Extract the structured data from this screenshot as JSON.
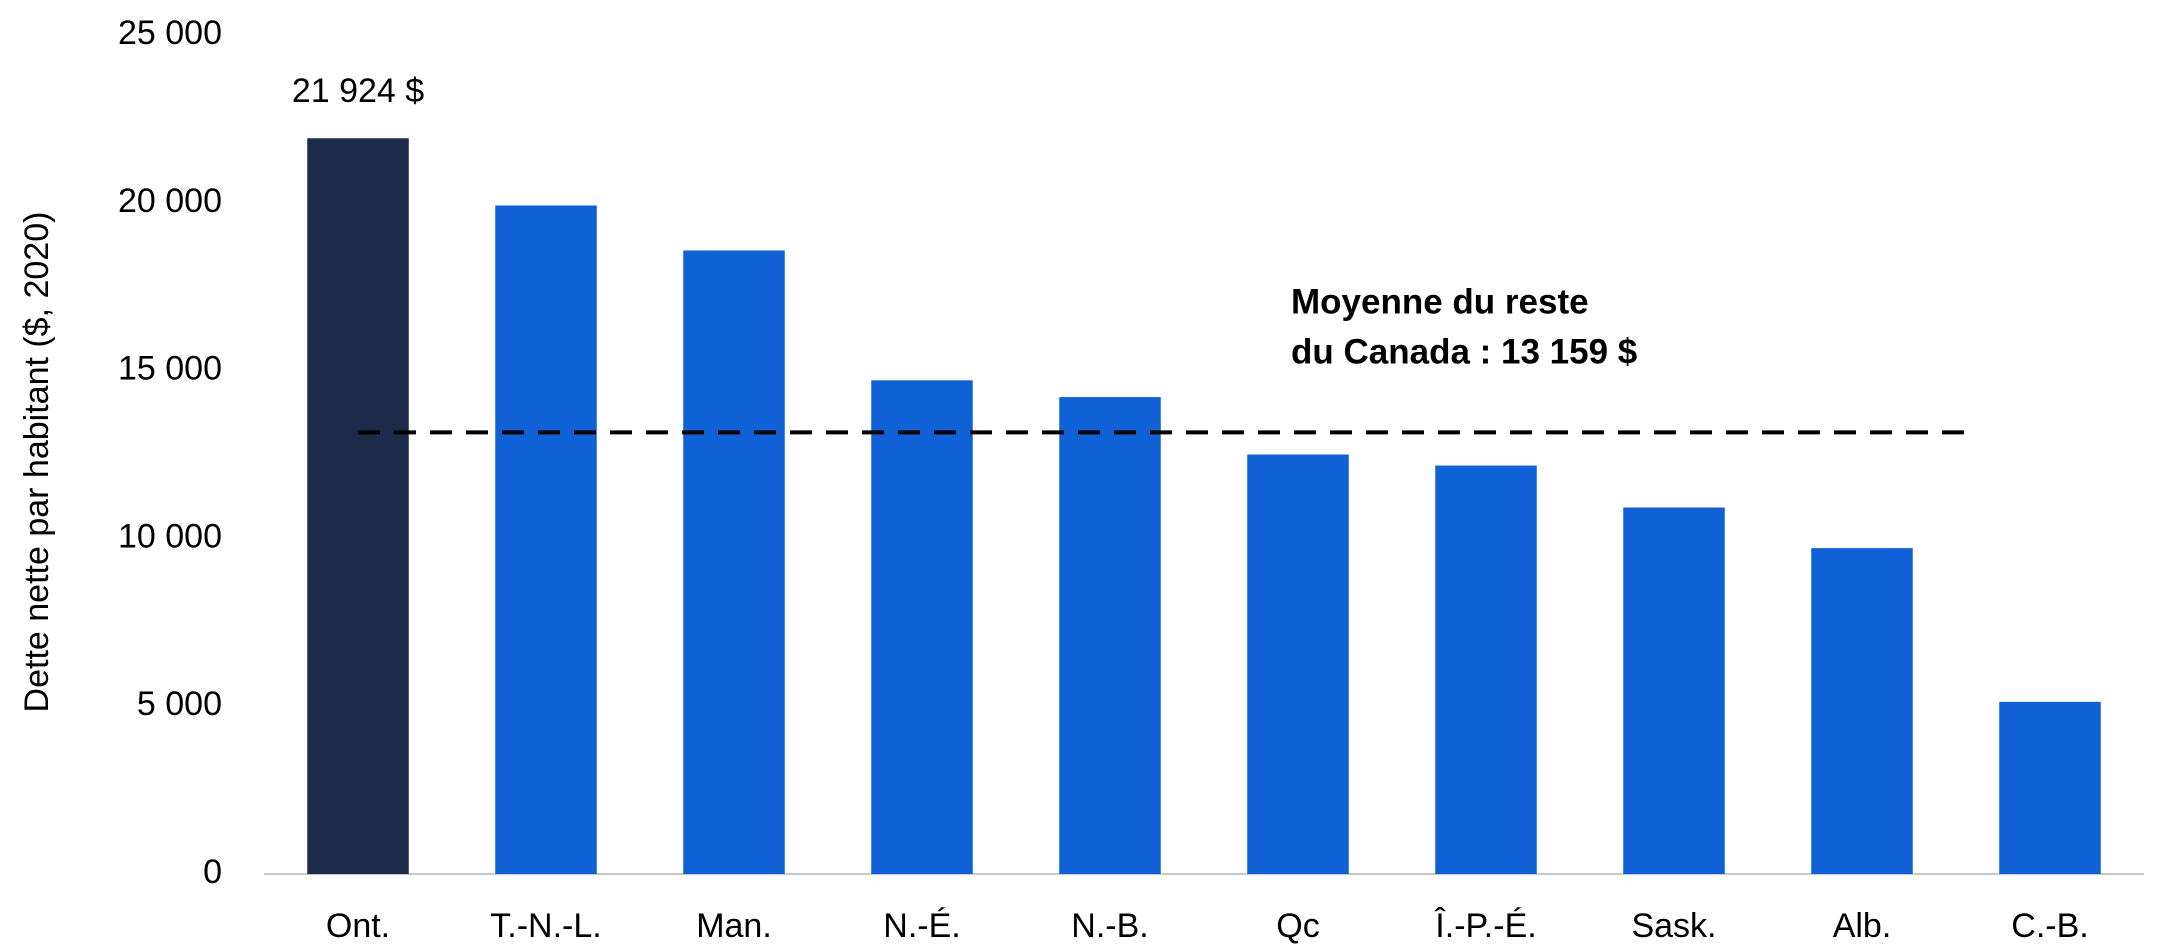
{
  "chart_data": {
    "type": "bar",
    "y_label": "Dette nette par habitant ($, 2020)",
    "categories": [
      "Ont.",
      "T.-N.-L.",
      "Man.",
      "N.-É.",
      "N.-B.",
      "Qc",
      "Î.-P.-É.",
      "Sask.",
      "Alb.",
      "C.-B."
    ],
    "values": [
      21924,
      19920,
      18580,
      14710,
      14210,
      12500,
      12170,
      10920,
      9710,
      5130
    ],
    "value_labels": [
      "21 924 $",
      null,
      null,
      null,
      null,
      null,
      null,
      null,
      null,
      null
    ],
    "colors": [
      "#1c2b4a",
      "#1060d6",
      "#1060d6",
      "#1060d6",
      "#1060d6",
      "#1060d6",
      "#1060d6",
      "#1060d6",
      "#1060d6",
      "#1060d6"
    ],
    "ylim": [
      0,
      25000
    ],
    "yticks": [
      0,
      {
        "value": 5000,
        "label": "5 000"
      },
      {
        "value": 10000,
        "label": "10 000"
      },
      {
        "value": 15000,
        "label": "15 000"
      },
      {
        "value": 20000,
        "label": "20 000"
      },
      {
        "value": 25000,
        "label": "25 000"
      }
    ],
    "grid": false,
    "reference_line": {
      "value": 13159,
      "color": "#000000",
      "label": [
        "Moyenne du reste",
        "du Canada : 13 159 $"
      ]
    }
  }
}
